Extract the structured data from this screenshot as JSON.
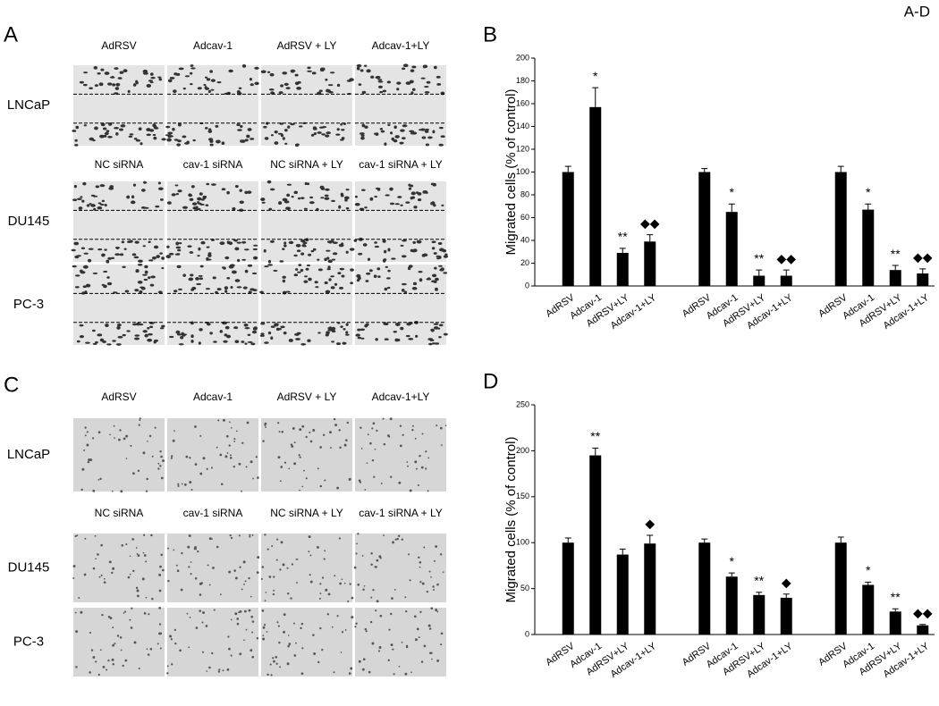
{
  "figure_label": "A-D",
  "panel_a": {
    "label": "A",
    "groups": [
      {
        "columns": [
          "AdRSV",
          "Adcav-1",
          "AdRSV + LY",
          "Adcav-1+LY"
        ],
        "rows": [
          "LNCaP"
        ]
      },
      {
        "columns": [
          "NC siRNA",
          "cav-1 siRNA",
          "NC siRNA + LY",
          "cav-1 siRNA + LY"
        ],
        "rows": [
          "DU145",
          "PC-3"
        ]
      }
    ]
  },
  "panel_c": {
    "label": "C",
    "groups": [
      {
        "columns": [
          "AdRSV",
          "Adcav-1",
          "AdRSV + LY",
          "Adcav-1+LY"
        ],
        "rows": [
          "LNCaP"
        ]
      },
      {
        "columns": [
          "NC siRNA",
          "cav-1 siRNA",
          "NC siRNA + LY",
          "cav-1 siRNA + LY"
        ],
        "rows": [
          "DU145",
          "PC-3"
        ]
      }
    ]
  },
  "chart_data": [
    {
      "type": "bar",
      "panel": "B",
      "y_label": "Migrated cells (% of control)",
      "categories": [
        "AdRSV",
        "Adcav-1",
        "AdRSV+LY",
        "Adcav-1+LY",
        "AdRSV",
        "Adcav-1",
        "AdRSV+LY",
        "Adcav-1+LY",
        "AdRSV",
        "Adcav-1",
        "AdRSV+LY",
        "Adcav-1+LY"
      ],
      "values": [
        100,
        157,
        29,
        39,
        100,
        65,
        9,
        9,
        100,
        67,
        14,
        11
      ],
      "errors": [
        5,
        17,
        4,
        6,
        3,
        7,
        5,
        5,
        5,
        5,
        4,
        4
      ],
      "annotations": [
        null,
        "*",
        "**",
        "◆◆",
        null,
        "*",
        "**",
        "◆◆",
        null,
        "*",
        "**",
        "◆◆"
      ],
      "color": "#000000",
      "ylim": [
        0,
        200
      ],
      "yticks": [
        0,
        20,
        40,
        60,
        80,
        100,
        120,
        140,
        160,
        180,
        200
      ]
    },
    {
      "type": "bar",
      "panel": "D",
      "y_label": "Migrated cells (% of control)",
      "categories": [
        "AdRSV",
        "Adcav-1",
        "AdRSV+LY",
        "Adcav-1+LY",
        "AdRSV",
        "Adcav-1",
        "AdRSV+LY",
        "Adcav-1+LY",
        "AdRSV",
        "Adcav-1",
        "AdRSV+LY",
        "Adcav-1+LY"
      ],
      "values": [
        100,
        195,
        87,
        99,
        100,
        63,
        43,
        40,
        100,
        54,
        25,
        10
      ],
      "errors": [
        5,
        8,
        6,
        9,
        4,
        4,
        3,
        4,
        6,
        3,
        3,
        1
      ],
      "annotations": [
        null,
        "**",
        null,
        "◆",
        null,
        "*",
        "**",
        "◆",
        null,
        "*",
        "**",
        "◆◆"
      ],
      "color": "#000000",
      "ylim": [
        0,
        250
      ],
      "yticks": [
        0,
        50,
        100,
        150,
        200,
        250
      ]
    }
  ]
}
